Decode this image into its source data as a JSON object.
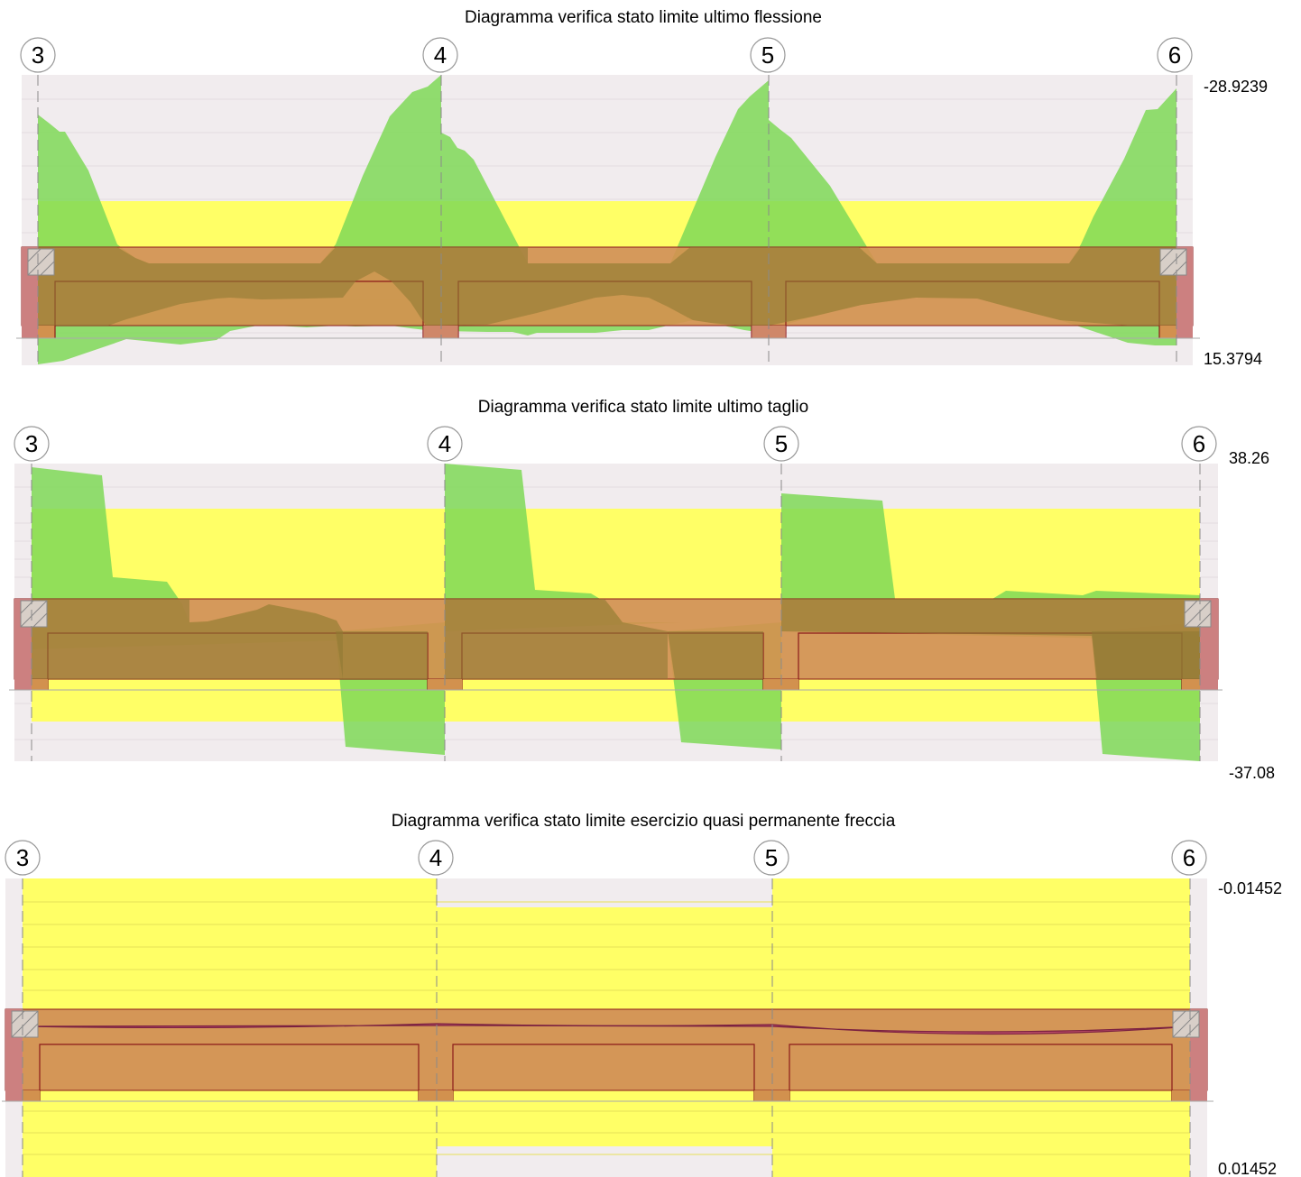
{
  "panels": [
    {
      "title": "Diagramma verifica stato limite ultimo flessione",
      "supports": [
        "3",
        "4",
        "5",
        "6"
      ],
      "top_value": "-28.9239",
      "bottom_value": "15.3794"
    },
    {
      "title": "Diagramma verifica stato limite ultimo taglio",
      "supports": [
        "3",
        "4",
        "5",
        "6"
      ],
      "top_value": "38.26",
      "bottom_value": "-37.08"
    },
    {
      "title": "Diagramma verifica stato limite esercizio quasi permanente freccia",
      "supports": [
        "3",
        "4",
        "5",
        "6"
      ],
      "top_value": "-0.01452",
      "bottom_value": "0.01452"
    }
  ],
  "colors": {
    "background_band": "#f1ecee",
    "capacity_band": "#ffff66",
    "demand_fill": "#7fd957",
    "beam_fill": "#d2914e",
    "overlap_fill": "#8f7a34",
    "support_fill": "#cc8080",
    "deflection_fill": "#c0506a"
  }
}
